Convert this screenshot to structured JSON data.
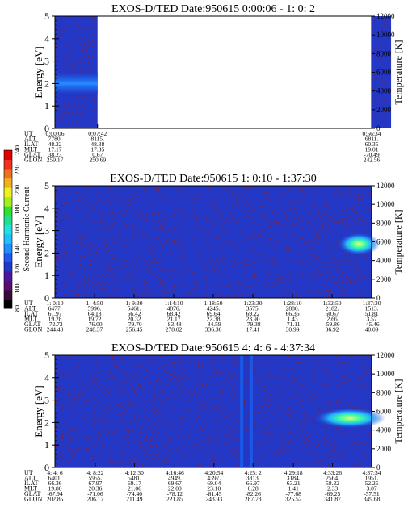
{
  "colorbar": {
    "label": "Second Harmonic Current",
    "ticks": [
      "80",
      "100",
      "120",
      "140",
      "160",
      "180",
      "200",
      "220",
      "240"
    ]
  },
  "colors": {
    "background": "#2438c8",
    "noise_dots": "#7a2040",
    "gap": "#ffffff"
  },
  "chart_data": [
    {
      "type": "heatmap",
      "title": "EXOS-D/TED   Date:950615  0:00:06 - 1: 0: 2",
      "ylabel": "Energy [eV]",
      "ylabel_right": "Temperature [K]",
      "ylim": [
        0,
        5
      ],
      "ylim_right": [
        0,
        12000
      ],
      "yticks": [
        "0",
        "1",
        "2",
        "3",
        "4",
        "5"
      ],
      "yticks_right": [
        "0",
        "2000",
        "4000",
        "6000",
        "8000",
        "10000",
        "12000"
      ],
      "grid": false,
      "data_segments": [
        {
          "from": "0:00:06",
          "to": "0:07:42"
        },
        {
          "from": "0:56:34",
          "to": "1:00:02"
        }
      ],
      "features": [
        {
          "time_from": "0:00:06",
          "time_to": "0:07:42",
          "energy_center": 2.0,
          "energy_halfwidth": 0.45,
          "level": "elevated"
        }
      ],
      "orbit_table": {
        "row_labels": [
          "UT",
          "ALT",
          "ILAT",
          "MLT",
          "GLAT",
          "GLON"
        ],
        "columns": [
          {
            "values": [
              "0:00:06",
              "7780.",
              "48.22",
              "17.17",
              "38.23",
              "259.17"
            ]
          },
          {
            "values": [
              "0:07:42",
              "8115.",
              "48.38",
              "17.35",
              "0.67",
              "250.69"
            ]
          },
          {
            "values": [
              "0:56:34",
              "6811.",
              "60.35",
              "19.01",
              "-70.49",
              "242.56"
            ]
          }
        ]
      }
    },
    {
      "type": "heatmap",
      "title": "EXOS-D/TED   Date:950615  1: 0:10 - 1:37:30",
      "ylabel": "Energy [eV]",
      "ylabel_right": "Temperature [K]",
      "ylim": [
        0,
        5
      ],
      "ylim_right": [
        0,
        12000
      ],
      "yticks": [
        "0",
        "1",
        "2",
        "3",
        "4",
        "5"
      ],
      "yticks_right": [
        "0",
        "2000",
        "4000",
        "6000",
        "8000",
        "10000",
        "12000"
      ],
      "grid": false,
      "data_segments": [
        {
          "from": "1:00:10",
          "to": "1:37:30"
        }
      ],
      "features": [
        {
          "time_from": "1:33:30",
          "time_to": "1:37:30",
          "energy_center": 2.4,
          "energy_halfwidth": 0.5,
          "level": "high"
        }
      ],
      "orbit_table": {
        "row_labels": [
          "UT",
          "ALT",
          "ILAT",
          "MLT",
          "GLAT",
          "GLON"
        ],
        "columns": [
          {
            "values": [
              "1: 0:10",
              "6477.",
              "61.97",
              "19.28",
              "-72.72",
              "244.40"
            ]
          },
          {
            "values": [
              "1: 4:50",
              "5996.",
              "64.18",
              "19.72",
              "-76.00",
              "248.37"
            ]
          },
          {
            "values": [
              "1: 9:30",
              "5461.",
              "66.42",
              "20.32",
              "-79.70",
              "256.45"
            ]
          },
          {
            "values": [
              "1:14:10",
              "4876.",
              "68.42",
              "21.17",
              "-83.48",
              "278.02"
            ]
          },
          {
            "values": [
              "1:18:50",
              "4245.",
              "69.64",
              "22.38",
              "-84.59",
              "336.36"
            ]
          },
          {
            "values": [
              "1:23:30",
              "3575.",
              "69.22",
              "23.90",
              "-79.38",
              "17.41"
            ]
          },
          {
            "values": [
              "1:28:10",
              "2880.",
              "66.36",
              "1.43",
              "-71.11",
              "30.99"
            ]
          },
          {
            "values": [
              "1:32:50",
              "2182.",
              "60.67",
              "2.66",
              "-59.86",
              "36.92"
            ]
          },
          {
            "values": [
              "1:37:30",
              "1513.",
              "51.81",
              "3.57",
              "-45.46",
              "40.09"
            ]
          }
        ]
      }
    },
    {
      "type": "heatmap",
      "title": "EXOS-D/TED   Date:950615  4: 4: 6 - 4:37:34",
      "ylabel": "Energy [eV]",
      "ylabel_right": "Temperature [K]",
      "ylim": [
        0,
        5
      ],
      "ylim_right": [
        0,
        12000
      ],
      "yticks": [
        "0",
        "1",
        "2",
        "3",
        "4",
        "5"
      ],
      "yticks_right": [
        "0",
        "2000",
        "4000",
        "6000",
        "8000",
        "10000",
        "12000"
      ],
      "grid": false,
      "data_segments": [
        {
          "from": "4:04:06",
          "to": "4:37:34"
        }
      ],
      "features": [
        {
          "time_from": "4:31:30",
          "time_to": "4:37:34",
          "energy_center": 2.2,
          "energy_halfwidth": 0.45,
          "level": "high"
        },
        {
          "time_from": "4:23:40",
          "time_to": "4:24:00",
          "energy_center": 2.5,
          "energy_halfwidth": 2.5,
          "level": "elevated"
        },
        {
          "time_from": "4:24:40",
          "time_to": "4:25:00",
          "energy_center": 2.5,
          "energy_halfwidth": 2.5,
          "level": "elevated"
        }
      ],
      "orbit_table": {
        "row_labels": [
          "UT",
          "ALT",
          "ILAT",
          "MLT",
          "GLAT",
          "GLON"
        ],
        "columns": [
          {
            "values": [
              "4: 4: 6",
              "6401.",
              "66.36",
              "19.80",
              "-67.94",
              "202.85"
            ]
          },
          {
            "values": [
              "4: 8:22",
              "5955.",
              "67.97",
              "20.36",
              "-71.06",
              "206.17"
            ]
          },
          {
            "values": [
              "4:12:30",
              "5481.",
              "69.17",
              "21.06",
              "-74.40",
              "211.49"
            ]
          },
          {
            "values": [
              "4:16:46",
              "4949.",
              "69.67",
              "22.00",
              "-78.12",
              "221.85"
            ]
          },
          {
            "values": [
              "4:20:54",
              "4397.",
              "69.04",
              "23.10",
              "-81.45",
              "243.93"
            ]
          },
          {
            "values": [
              "4:25: 2",
              "3813.",
              "66.97",
              "0.28",
              "-82.26",
              "287.73"
            ]
          },
          {
            "values": [
              "4:29:18",
              "3184.",
              "63.21",
              "1.41",
              "-77.68",
              "325.52"
            ]
          },
          {
            "values": [
              "4:33:26",
              "2564.",
              "58.22",
              "2.33",
              "-69.25",
              "341.87"
            ]
          },
          {
            "values": [
              "4:37:34",
              "1951.",
              "52.25",
              "3.07",
              "-57.51",
              "349.68"
            ]
          }
        ]
      }
    }
  ]
}
